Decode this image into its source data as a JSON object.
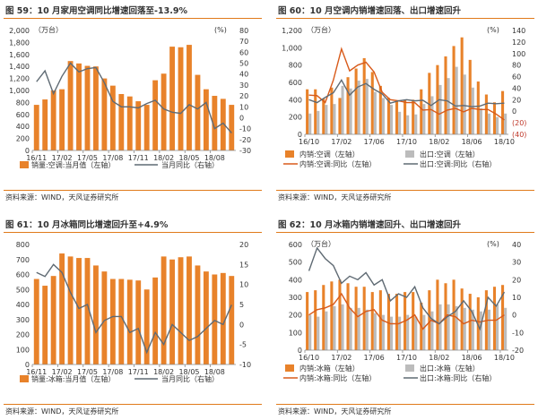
{
  "chart_data": [
    {
      "type": "bar",
      "title": "图 59：10 月家用空调同比增速回落至-13.9%",
      "source": "资料来源：WIND，天风证券研究所",
      "left_unit": "（万台）",
      "right_unit": "(%)",
      "ylim": [
        0,
        2000
      ],
      "yticks": [
        0,
        200,
        400,
        600,
        800,
        1000,
        1200,
        1400,
        1600,
        1800,
        2000
      ],
      "y2lim": [
        -30,
        80
      ],
      "y2ticks": [
        -30,
        -20,
        -10,
        0,
        10,
        20,
        30,
        40,
        50,
        60,
        70,
        80
      ],
      "xticks": [
        {
          "i": 0,
          "label": "16/11"
        },
        {
          "i": 3,
          "label": "17/02"
        },
        {
          "i": 6,
          "label": "17/05"
        },
        {
          "i": 9,
          "label": "17/08"
        },
        {
          "i": 12,
          "label": "17/11"
        },
        {
          "i": 15,
          "label": "18/02"
        },
        {
          "i": 18,
          "label": "18/05"
        },
        {
          "i": 21,
          "label": "18/08"
        }
      ],
      "series": [
        {
          "name": "销量:空调:当月值（左轴）",
          "kind": "bar",
          "axis": "left",
          "color": "#e8822a",
          "values": [
            760,
            850,
            1000,
            1020,
            1490,
            1450,
            1410,
            1400,
            1200,
            1080,
            940,
            900,
            820,
            760,
            1170,
            1280,
            1730,
            1720,
            1760,
            1260,
            1020,
            910,
            860,
            760
          ]
        },
        {
          "name": "当月同比（右轴）",
          "kind": "line",
          "axis": "right",
          "color": "#5f6a73",
          "values": [
            33,
            43,
            22,
            38,
            50,
            42,
            45,
            46,
            32,
            15,
            10,
            10,
            9,
            13,
            16,
            8,
            5,
            4,
            12,
            8,
            14,
            -10,
            -5,
            -14
          ]
        }
      ]
    },
    {
      "type": "bar",
      "title": "图 60：10 月空调内销增速回落、出口增速回升",
      "source": "资料来源：WIND，天风证券研究所",
      "left_unit": "（万台）",
      "right_unit": "(%)",
      "ylim": [
        0,
        1200
      ],
      "yticks": [
        0,
        200,
        400,
        600,
        800,
        1000,
        1200
      ],
      "y2lim": [
        -40,
        140
      ],
      "y2ticks": [
        -40,
        -20,
        0,
        20,
        40,
        60,
        80,
        100,
        120,
        140
      ],
      "y2ticklabels": [
        "(40)",
        "(20)",
        "0",
        "20",
        "40",
        "60",
        "80",
        "100",
        "120",
        "140"
      ],
      "xticks": [
        {
          "i": 0,
          "label": "16/10"
        },
        {
          "i": 4,
          "label": "17/02"
        },
        {
          "i": 8,
          "label": "17/06"
        },
        {
          "i": 12,
          "label": "17/10"
        },
        {
          "i": 16,
          "label": "18/02"
        },
        {
          "i": 20,
          "label": "18/06"
        },
        {
          "i": 24,
          "label": "18/10"
        }
      ],
      "series": [
        {
          "name": "内销:空调（左轴）",
          "kind": "bar",
          "axis": "left",
          "color": "#e8822a",
          "values": [
            520,
            520,
            410,
            540,
            420,
            660,
            760,
            880,
            720,
            560,
            420,
            390,
            400,
            400,
            520,
            710,
            800,
            900,
            1020,
            1120,
            860,
            610,
            460,
            370,
            500
          ]
        },
        {
          "name": "出口:空调（左轴）",
          "kind": "bar",
          "axis": "left",
          "color": "#bcbcbc",
          "values": [
            240,
            270,
            340,
            350,
            560,
            530,
            620,
            640,
            490,
            420,
            340,
            260,
            220,
            230,
            350,
            440,
            570,
            650,
            780,
            690,
            540,
            300,
            240,
            200,
            240
          ]
        },
        {
          "name": "内销:空调:同比（左轴）",
          "kind": "line",
          "axis": "right",
          "color": "#d85a1a",
          "values": [
            28,
            27,
            15,
            54,
            108,
            70,
            80,
            85,
            68,
            33,
            20,
            18,
            15,
            15,
            2,
            3,
            -5,
            2,
            5,
            -1,
            5,
            3,
            3,
            -5,
            -15
          ]
        },
        {
          "name": "出口:空调:同比（右轴）",
          "kind": "line",
          "axis": "right",
          "color": "#5f6a73",
          "values": [
            20,
            15,
            24,
            32,
            54,
            28,
            42,
            48,
            38,
            30,
            14,
            18,
            20,
            18,
            19,
            10,
            20,
            18,
            9,
            10,
            8,
            9,
            14,
            13,
            14
          ]
        }
      ]
    },
    {
      "type": "bar",
      "title": "图 61：10 月冰箱同比增速回升至+4.9%",
      "source": "资料来源：WIND，天风证券研究所",
      "left_unit": "",
      "right_unit": "",
      "ylim": [
        0,
        800
      ],
      "yticks": [
        0,
        100,
        200,
        300,
        400,
        500,
        600,
        700,
        800
      ],
      "y2lim": [
        -10,
        20
      ],
      "y2ticks": [
        -10,
        -5,
        0,
        5,
        10,
        15,
        20
      ],
      "xticks": [
        {
          "i": 0,
          "label": "16/11"
        },
        {
          "i": 3,
          "label": "17/02"
        },
        {
          "i": 6,
          "label": "17/05"
        },
        {
          "i": 9,
          "label": "17/08"
        },
        {
          "i": 12,
          "label": "17/11"
        },
        {
          "i": 15,
          "label": "18/02"
        },
        {
          "i": 18,
          "label": "18/05"
        },
        {
          "i": 21,
          "label": "18/08"
        }
      ],
      "series": [
        {
          "name": "销量:冰箱:当月值（左轴）",
          "kind": "bar",
          "axis": "left",
          "color": "#e8822a",
          "values": [
            570,
            525,
            590,
            740,
            720,
            710,
            710,
            660,
            620,
            570,
            570,
            565,
            560,
            500,
            580,
            720,
            700,
            715,
            720,
            660,
            620,
            600,
            610,
            590
          ]
        },
        {
          "name": "当月同比（右轴）",
          "kind": "line",
          "axis": "right",
          "color": "#5f6a73",
          "values": [
            13,
            12,
            15,
            13,
            8,
            4,
            5,
            -2,
            1,
            2,
            2,
            -2,
            -1,
            -7,
            -2,
            -5,
            0,
            -2,
            -4,
            -3,
            -1,
            1,
            0,
            4.9
          ]
        }
      ]
    },
    {
      "type": "bar",
      "title": "图 62：10 月冰箱内销增速回升、出口增速回升",
      "source": "资料来源：WIND，天风证券研究所",
      "left_unit": "（万台）",
      "right_unit": "(%)",
      "ylim": [
        0,
        600
      ],
      "yticks": [
        0,
        100,
        200,
        300,
        400,
        500,
        600
      ],
      "y2lim": [
        -20,
        40
      ],
      "y2ticks": [
        -20,
        -10,
        0,
        10,
        20,
        30,
        40
      ],
      "xticks": [
        {
          "i": 0,
          "label": "16/10"
        },
        {
          "i": 4,
          "label": "17/02"
        },
        {
          "i": 8,
          "label": "17/06"
        },
        {
          "i": 12,
          "label": "17/10"
        },
        {
          "i": 16,
          "label": "18/02"
        },
        {
          "i": 20,
          "label": "18/06"
        },
        {
          "i": 24,
          "label": "18/10"
        }
      ],
      "series": [
        {
          "name": "内销:冰箱（左轴）",
          "kind": "bar",
          "axis": "left",
          "color": "#e8822a",
          "values": [
            330,
            340,
            370,
            390,
            400,
            380,
            360,
            360,
            330,
            340,
            320,
            320,
            330,
            330,
            270,
            340,
            400,
            380,
            400,
            350,
            320,
            300,
            340,
            360,
            370
          ]
        },
        {
          "name": "出口:冰箱（左轴）",
          "kind": "bar",
          "axis": "left",
          "color": "#bcbcbc",
          "values": [
            200,
            190,
            220,
            250,
            260,
            240,
            240,
            230,
            210,
            200,
            190,
            190,
            200,
            190,
            200,
            220,
            260,
            260,
            250,
            240,
            230,
            220,
            230,
            260,
            240
          ]
        },
        {
          "name": "内销:冰箱:同比（左轴）",
          "kind": "line",
          "axis": "right",
          "color": "#d85a1a",
          "values": [
            0,
            3,
            4,
            6,
            12,
            4,
            -1,
            2,
            3,
            -3,
            -5,
            -5,
            -3,
            0,
            -8,
            -3,
            -5,
            0,
            -1,
            -5,
            -3,
            -4,
            -3,
            -3,
            0
          ]
        },
        {
          "name": "出口:冰箱:同比（右轴）",
          "kind": "line",
          "axis": "right",
          "color": "#5f6a73",
          "values": [
            25,
            38,
            32,
            28,
            18,
            22,
            20,
            24,
            17,
            20,
            8,
            12,
            10,
            16,
            4,
            -2,
            -5,
            -1,
            2,
            8,
            2,
            -8,
            10,
            5,
            13
          ]
        }
      ]
    }
  ]
}
